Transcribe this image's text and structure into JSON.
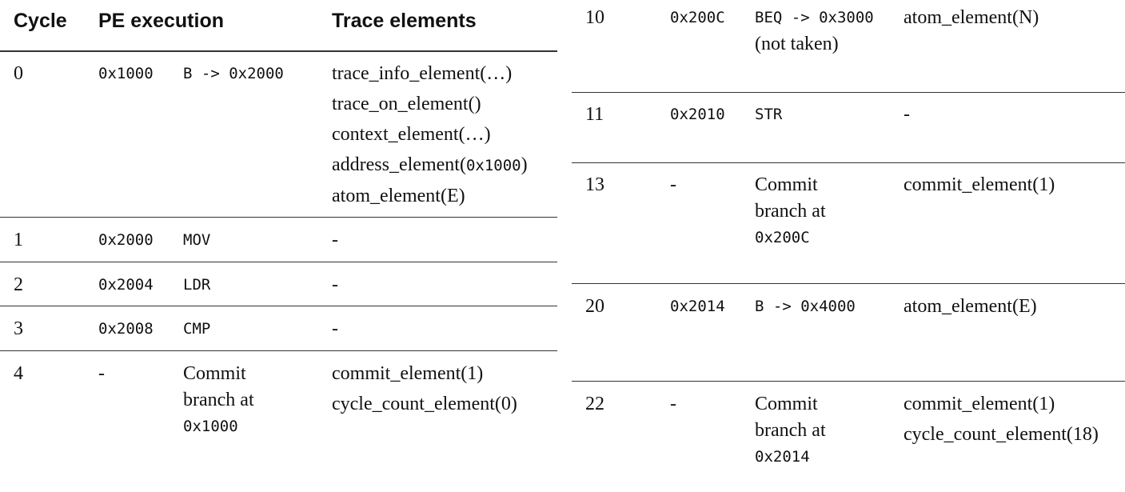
{
  "headers": {
    "cycle": "Cycle",
    "pe_execution": "PE execution",
    "trace_elements": "Trace elements"
  },
  "left_rows": [
    {
      "cycle": "0",
      "address": "0x1000",
      "instr": "B -> 0x2000",
      "trace": [
        "trace_info_element(…)",
        "trace_on_element()",
        "context_element(…)"
      ],
      "trace_mixed": {
        "prefix": "address_element(",
        "mono": "0x1000",
        "suffix": ")"
      },
      "trace_last": "atom_element(E)"
    },
    {
      "cycle": "1",
      "address": "0x2000",
      "instr": "MOV",
      "trace": "-"
    },
    {
      "cycle": "2",
      "address": "0x2004",
      "instr": "LDR",
      "trace": "-"
    },
    {
      "cycle": "3",
      "address": "0x2008",
      "instr": "CMP",
      "trace": "-"
    },
    {
      "cycle": "4",
      "address": "-",
      "instr_lines": [
        "Commit",
        "branch at"
      ],
      "instr_mono": "0x1000",
      "trace": [
        "commit_element(1)",
        "cycle_count_element(0)"
      ]
    }
  ],
  "right_rows": [
    {
      "cycle": "10",
      "address": "0x200C",
      "instr": "BEQ -> 0x3000",
      "instr_note": "(not taken)",
      "trace": "atom_element(N)"
    },
    {
      "cycle": "11",
      "address": "0x2010",
      "instr": "STR",
      "trace": "-"
    },
    {
      "cycle": "13",
      "address": "-",
      "instr_lines": [
        "Commit",
        "branch at"
      ],
      "instr_mono": "0x200C",
      "trace": "commit_element(1)"
    },
    {
      "cycle": "20",
      "address": "0x2014",
      "instr": "B -> 0x4000",
      "trace": "atom_element(E)"
    },
    {
      "cycle": "22",
      "address": "-",
      "instr_lines": [
        "Commit",
        "branch at"
      ],
      "instr_mono": "0x2014",
      "trace": [
        "commit_element(1)",
        "cycle_count_element(18)"
      ]
    }
  ]
}
